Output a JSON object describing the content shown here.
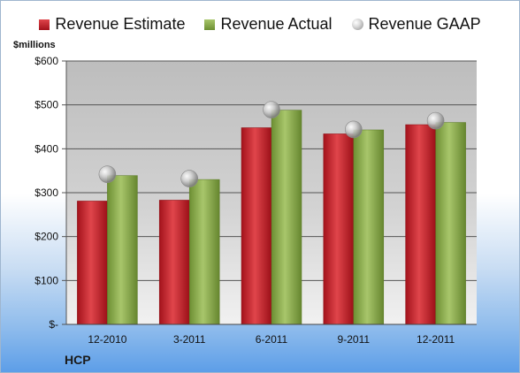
{
  "legend": {
    "estimate": "Revenue Estimate",
    "actual": "Revenue Actual",
    "gaap": "Revenue GAAP"
  },
  "unit_label": "$millions",
  "company": "HCP",
  "colors": {
    "estimate": "#c4202a",
    "actual": "#8bab4f",
    "gaap": "#b5b5b5",
    "plot_bg": "#d4d4d4"
  },
  "chart_data": {
    "type": "bar",
    "categories": [
      "12-2010",
      "3-2011",
      "6-2011",
      "9-2011",
      "12-2011"
    ],
    "series": [
      {
        "name": "Revenue Estimate",
        "values": [
          281,
          283,
          448,
          434,
          455
        ]
      },
      {
        "name": "Revenue Actual",
        "values": [
          339,
          330,
          488,
          443,
          460
        ]
      },
      {
        "name": "Revenue GAAP",
        "values": [
          342,
          332,
          489,
          444,
          464
        ],
        "style": "marker"
      }
    ],
    "ylabel": "$millions",
    "ylim": [
      0,
      600
    ],
    "yticks": [
      0,
      100,
      200,
      300,
      400,
      500,
      600
    ],
    "ytick_labels": [
      "$-",
      "$100",
      "$200",
      "$300",
      "$400",
      "$500",
      "$600"
    ],
    "grid": true,
    "legend_position": "top"
  }
}
